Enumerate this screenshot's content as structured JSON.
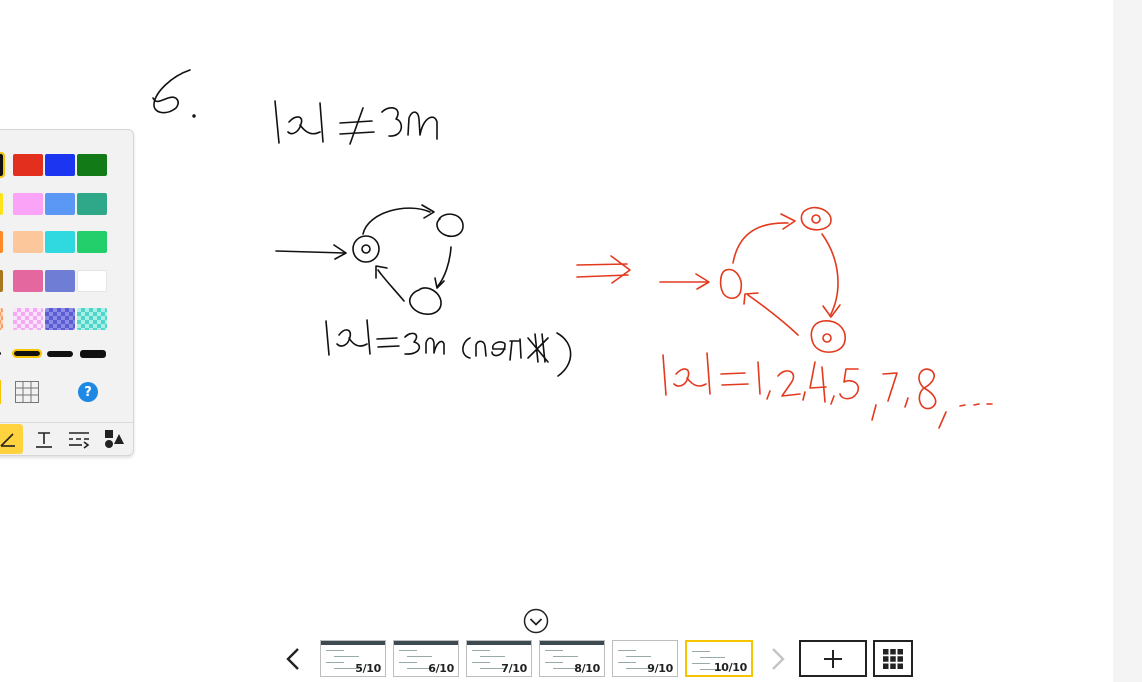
{
  "ink_colors": {
    "black": "#111111",
    "red": "#e3391d"
  },
  "palette": {
    "swatch_rows": [
      [
        "#111111",
        "#e3301e",
        "#1c35f0",
        "#127a16"
      ],
      [
        "#ffe31a",
        "#fba3f6",
        "#5b97f5",
        "#2fa88a"
      ],
      [
        "#ff8a26",
        "#fdc79c",
        "#2fd9df",
        "#23cf6a"
      ],
      [
        "#a6781f",
        "#e4679f",
        "#6f7ed4",
        "#ffffff"
      ]
    ],
    "tools": [
      "pen-tool-icon",
      "text-tool-icon",
      "line-style-tool-icon",
      "shapes-tool-icon"
    ],
    "help_label": "?"
  },
  "pager": {
    "prev_icon": "chevron-left-icon",
    "next_icon": "chevron-right-icon",
    "collapse_icon": "chevron-down-circle-icon",
    "add_icon": "plus-icon",
    "grid_icon": "grid-icon",
    "pages": [
      {
        "label": "5/10"
      },
      {
        "label": "6/10"
      },
      {
        "label": "7/10"
      },
      {
        "label": "8/10"
      },
      {
        "label": "9/10"
      },
      {
        "label": "10/10",
        "current": true
      }
    ]
  }
}
